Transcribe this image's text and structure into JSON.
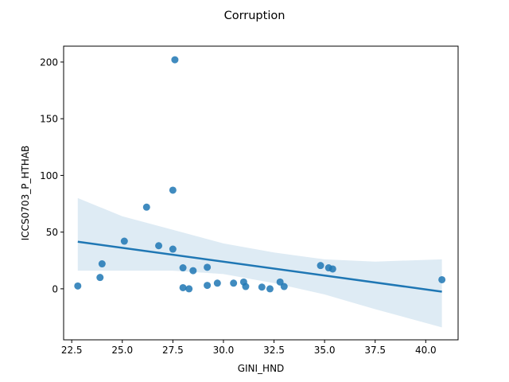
{
  "chart_data": {
    "type": "scatter",
    "title": "Corruption",
    "xlabel": "GINI_HND",
    "ylabel": "ICCS0703_P_HTHAB",
    "xlim": [
      22.1,
      41.6
    ],
    "ylim": [
      -45,
      214
    ],
    "xticks": [
      22.5,
      25.0,
      27.5,
      30.0,
      32.5,
      35.0,
      37.5,
      40.0
    ],
    "xtick_labels": [
      "22.5",
      "25.0",
      "27.5",
      "30.0",
      "32.5",
      "35.0",
      "37.5",
      "40.0"
    ],
    "yticks": [
      0,
      50,
      100,
      150,
      200
    ],
    "ytick_labels": [
      "0",
      "50",
      "100",
      "150",
      "200"
    ],
    "grid": false,
    "legend": "none",
    "colors": {
      "points": "#1f77b4",
      "line": "#1f77b4",
      "band": "#1f77b4"
    },
    "points": [
      {
        "x": 22.8,
        "y": 2.5
      },
      {
        "x": 23.9,
        "y": 10
      },
      {
        "x": 24.0,
        "y": 22
      },
      {
        "x": 25.1,
        "y": 42
      },
      {
        "x": 26.2,
        "y": 72
      },
      {
        "x": 26.8,
        "y": 38
      },
      {
        "x": 27.5,
        "y": 87
      },
      {
        "x": 27.5,
        "y": 35
      },
      {
        "x": 27.6,
        "y": 202
      },
      {
        "x": 28.0,
        "y": 18.5
      },
      {
        "x": 28.0,
        "y": 1
      },
      {
        "x": 28.3,
        "y": 0
      },
      {
        "x": 28.5,
        "y": 16
      },
      {
        "x": 29.2,
        "y": 19
      },
      {
        "x": 29.2,
        "y": 3
      },
      {
        "x": 29.7,
        "y": 5
      },
      {
        "x": 30.5,
        "y": 5
      },
      {
        "x": 31.0,
        "y": 6
      },
      {
        "x": 31.1,
        "y": 2
      },
      {
        "x": 31.9,
        "y": 1.5
      },
      {
        "x": 32.3,
        "y": 0
      },
      {
        "x": 32.8,
        "y": 6
      },
      {
        "x": 33.0,
        "y": 2
      },
      {
        "x": 34.8,
        "y": 20.5
      },
      {
        "x": 35.2,
        "y": 18.5
      },
      {
        "x": 35.4,
        "y": 17.5
      },
      {
        "x": 40.8,
        "y": 8
      }
    ],
    "regression": {
      "x": [
        22.8,
        40.8
      ],
      "y": [
        41.5,
        -2.5
      ]
    },
    "confidence_band": {
      "x": [
        22.8,
        25.0,
        27.5,
        30.0,
        32.5,
        35.0,
        37.5,
        40.8
      ],
      "lower": [
        16,
        16,
        16,
        13,
        5,
        -5,
        -18,
        -34
      ],
      "upper": [
        80,
        64,
        52,
        40,
        32,
        26,
        24,
        26
      ]
    }
  }
}
